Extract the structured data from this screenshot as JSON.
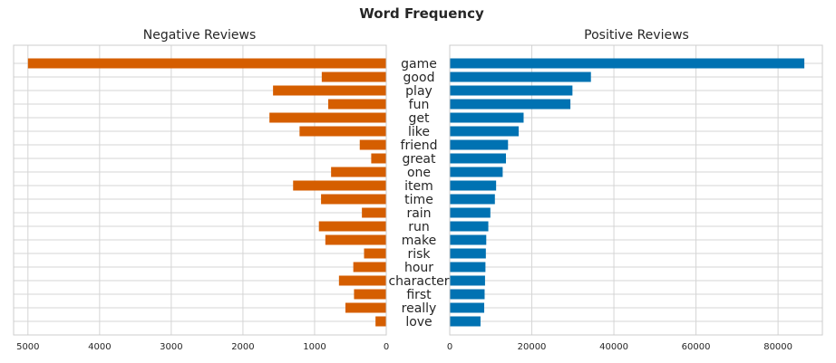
{
  "chart_data": {
    "type": "bar",
    "title": "Word Frequency",
    "categories": [
      "game",
      "good",
      "play",
      "fun",
      "get",
      "like",
      "friend",
      "great",
      "one",
      "item",
      "time",
      "rain",
      "run",
      "make",
      "risk",
      "hour",
      "character",
      "first",
      "really",
      "love"
    ],
    "grid": true,
    "panels": [
      {
        "title": "Negative Reviews",
        "orientation": "horizontal",
        "x_inverted": true,
        "xlim": [
          5200,
          0
        ],
        "xticks": [
          5000,
          4000,
          3000,
          2000,
          1000,
          0
        ],
        "color": "#d55e00",
        "values": [
          5000,
          900,
          1580,
          810,
          1630,
          1210,
          370,
          210,
          770,
          1300,
          910,
          340,
          940,
          850,
          310,
          460,
          660,
          450,
          570,
          150
        ]
      },
      {
        "title": "Positive Reviews",
        "orientation": "horizontal",
        "x_inverted": false,
        "xlim": [
          0,
          90800
        ],
        "xticks": [
          0,
          20000,
          40000,
          60000,
          80000
        ],
        "color": "#0072b2",
        "values": [
          86400,
          34400,
          29900,
          29400,
          18000,
          16800,
          14200,
          13700,
          12900,
          11300,
          11000,
          9900,
          9400,
          8900,
          8800,
          8700,
          8600,
          8500,
          8400,
          7500
        ]
      }
    ]
  }
}
